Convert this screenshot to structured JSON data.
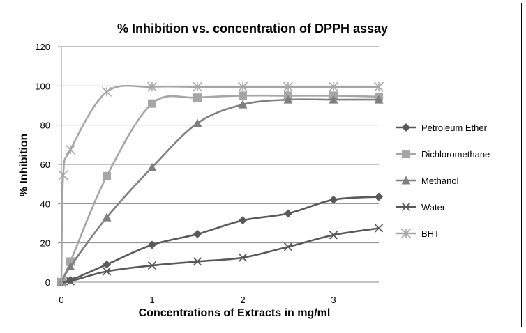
{
  "chart_data": {
    "type": "line",
    "title": "% Inhibition vs. concentration of DPPH assay",
    "xlabel": "Concentrations of Extracts in mg/ml",
    "ylabel": "% Inhibition",
    "xlim": [
      0,
      3.5
    ],
    "ylim": [
      0,
      120
    ],
    "x_ticks": [
      "0",
      "1",
      "2",
      "3"
    ],
    "y_ticks": [
      "0",
      "20",
      "40",
      "60",
      "80",
      "100",
      "120"
    ],
    "grid": true,
    "legend_position": "right",
    "series": [
      {
        "name": "Petroleum Ether",
        "marker": "diamond",
        "color": "#595959",
        "x": [
          0,
          0.1,
          0.5,
          1,
          1.5,
          2,
          2.5,
          3,
          3.5
        ],
        "y": [
          0,
          1,
          9,
          19,
          24.5,
          31.5,
          35,
          42,
          43.5
        ]
      },
      {
        "name": "Dichloromethane",
        "marker": "square",
        "color": "#a6a6a6",
        "x": [
          0,
          0.1,
          0.5,
          1,
          1.5,
          2,
          2.5,
          3,
          3.5
        ],
        "y": [
          0,
          10.5,
          54,
          91,
          94,
          95,
          95,
          95,
          94.5
        ]
      },
      {
        "name": "Methanol",
        "marker": "triangle",
        "color": "#7f7f7f",
        "x": [
          0,
          0.1,
          0.5,
          1,
          1.5,
          2,
          2.5,
          3,
          3.5
        ],
        "y": [
          0,
          8,
          33,
          58.5,
          81,
          90.5,
          93,
          93,
          93
        ]
      },
      {
        "name": "Water",
        "marker": "x",
        "color": "#595959",
        "x": [
          0,
          0.1,
          0.5,
          1,
          1.5,
          2,
          2.5,
          3,
          3.5
        ],
        "y": [
          0,
          0.5,
          5.5,
          8.5,
          10.5,
          12.5,
          18,
          24,
          27.5
        ]
      },
      {
        "name": "BHT",
        "marker": "star",
        "color": "#a6a6a6",
        "x": [
          0,
          0.02,
          0.1,
          0.5,
          1,
          1.5,
          2,
          2.5,
          3,
          3.5
        ],
        "y": [
          0,
          54.5,
          67.5,
          97,
          99.5,
          99.5,
          99.5,
          99.5,
          99.5,
          99.5
        ]
      }
    ]
  }
}
